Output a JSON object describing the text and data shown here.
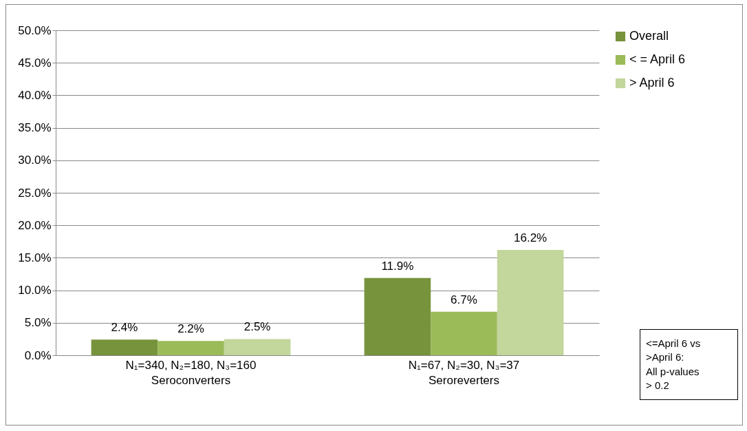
{
  "chart_data": {
    "type": "bar",
    "categories": [
      "N₁=340,  N₂=180,  N₃=160\nSeroconverters",
      "N₁=67,  N₂=30,  N₃=37\nSeroreverters"
    ],
    "series": [
      {
        "name": "Overall",
        "color": "#77933c",
        "values": [
          2.4,
          11.9
        ],
        "value_labels": [
          "2.4%",
          "11.9%"
        ]
      },
      {
        "name": "< = April 6",
        "color": "#9bbb59",
        "values": [
          2.2,
          6.7
        ],
        "value_labels": [
          "2.2%",
          "6.7%"
        ]
      },
      {
        "name": "> April 6",
        "color": "#c3d69b",
        "values": [
          2.5,
          16.2
        ],
        "value_labels": [
          "2.5%",
          "16.2%"
        ]
      }
    ],
    "ylim": [
      0,
      50
    ],
    "yticks": [
      {
        "value": 0,
        "label": "0.0%"
      },
      {
        "value": 5,
        "label": "5.0%"
      },
      {
        "value": 10,
        "label": "10.0%"
      },
      {
        "value": 15,
        "label": "15.0%"
      },
      {
        "value": 20,
        "label": "20.0%"
      },
      {
        "value": 25,
        "label": "25.0%"
      },
      {
        "value": 30,
        "label": "30.0%"
      },
      {
        "value": 35,
        "label": "35.0%"
      },
      {
        "value": 40,
        "label": "40.0%"
      },
      {
        "value": 45,
        "label": "45.0%"
      },
      {
        "value": 50,
        "label": "50.0%"
      }
    ],
    "grid": "y",
    "legend": "right",
    "annotations": [
      "<=April 6 vs\n>April 6:\n All p-values\n> 0.2"
    ]
  }
}
